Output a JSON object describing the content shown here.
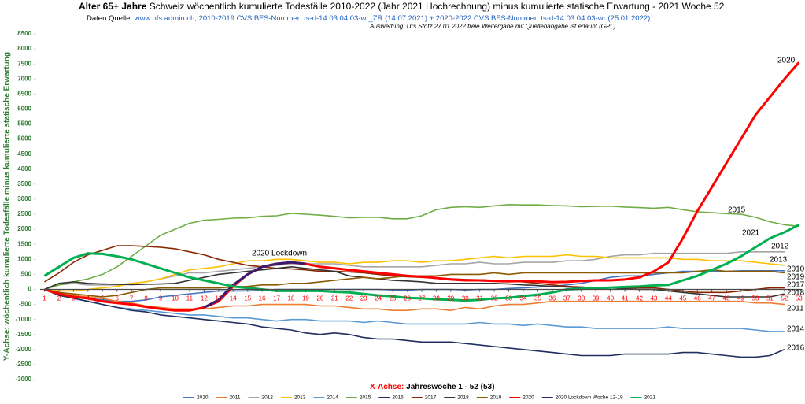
{
  "chart_data": {
    "type": "line",
    "title_bold": "Alter 65+ Jahre",
    "title": "Schweiz wöchentlich kumulierte Todesfälle 2010-2022 (Jahr 2021 Hochrechnung) minus kumulierte statische Erwartung -  2021  Woche  52",
    "source_label": "Daten Quelle:",
    "source": "www.bfs.admin.ch,  2010-2019 CVS BFS-Nummer: ts-d-14.03.04.03-wr_ZR (14.07.2021) + 2020-2022 CVS BFS-Nummer: ts-d-14.03.04.03-wr (25.01.2022)",
    "credit": "Auswertung: Urs Stotz 27.01.2022 freie Weitergabe mit Quellenangabe ist erlaubt (GPL)",
    "ylabel": "Y-Achse: wöchentlich kumulierte Todesfälle minus kumulierte statische Erwartung",
    "xlabel_bold": "X-Achse:",
    "xlabel": "Jahreswoche  1 - 52 (53)",
    "annotation": "2020 Lockdown",
    "xlim": [
      0.7,
      53.2
    ],
    "ylim": [
      -3000,
      8500
    ],
    "yticks": [
      -3000,
      -2500,
      -2000,
      -1500,
      -1000,
      -500,
      0,
      500,
      1000,
      1500,
      2000,
      2500,
      3000,
      3500,
      4000,
      4500,
      5000,
      5500,
      6000,
      6500,
      7000,
      7500,
      8000,
      8500
    ],
    "x": [
      1,
      2,
      3,
      4,
      5,
      6,
      7,
      8,
      9,
      10,
      11,
      12,
      13,
      14,
      15,
      16,
      17,
      18,
      19,
      20,
      21,
      22,
      23,
      24,
      25,
      26,
      27,
      28,
      29,
      30,
      31,
      32,
      33,
      34,
      35,
      36,
      37,
      38,
      39,
      40,
      41,
      42,
      43,
      44,
      45,
      46,
      47,
      48,
      49,
      50,
      51,
      52,
      53
    ],
    "series": [
      {
        "name": "2010",
        "color": "#4472c4",
        "values": [
          0,
          -150,
          -250,
          -300,
          -350,
          -400,
          -400,
          -350,
          -250,
          -200,
          -150,
          -100,
          -50,
          -50,
          -50,
          -30,
          0,
          0,
          0,
          0,
          0,
          0,
          0,
          0,
          -20,
          -30,
          0,
          0,
          0,
          -20,
          0,
          0,
          30,
          50,
          80,
          100,
          150,
          200,
          300,
          400,
          450,
          450,
          500,
          550,
          600,
          600,
          600,
          600,
          620,
          620,
          620,
          620,
          null
        ]
      },
      {
        "name": "2011",
        "color": "#ed7d31",
        "values": [
          0,
          -100,
          -200,
          -250,
          -300,
          -400,
          -450,
          -550,
          -600,
          -650,
          -650,
          -650,
          -600,
          -550,
          -550,
          -500,
          -500,
          -500,
          -500,
          -550,
          -550,
          -600,
          -650,
          -650,
          -700,
          -700,
          -650,
          -650,
          -700,
          -600,
          -650,
          -550,
          -500,
          -500,
          -450,
          -400,
          -400,
          -400,
          -400,
          -400,
          -400,
          -400,
          -400,
          -400,
          -400,
          -400,
          -400,
          -400,
          -400,
          -450,
          -450,
          -500,
          null
        ]
      },
      {
        "name": "2012",
        "color": "#a5a5a5",
        "values": [
          0,
          150,
          200,
          150,
          150,
          150,
          200,
          250,
          350,
          450,
          550,
          550,
          600,
          650,
          700,
          750,
          800,
          850,
          850,
          850,
          850,
          800,
          750,
          750,
          750,
          750,
          750,
          800,
          850,
          850,
          900,
          850,
          850,
          900,
          900,
          900,
          950,
          950,
          1000,
          1100,
          1150,
          1150,
          1200,
          1200,
          1200,
          1200,
          1200,
          1200,
          1250,
          1250,
          1250,
          1250,
          null
        ]
      },
      {
        "name": "2013",
        "color": "#ffc000",
        "values": [
          0,
          -50,
          -50,
          0,
          50,
          100,
          200,
          250,
          350,
          500,
          650,
          700,
          750,
          850,
          950,
          950,
          1000,
          1000,
          950,
          900,
          900,
          850,
          900,
          900,
          950,
          950,
          900,
          950,
          950,
          1000,
          1050,
          1100,
          1050,
          1100,
          1100,
          1100,
          1150,
          1100,
          1100,
          1050,
          1050,
          1050,
          1050,
          1050,
          1000,
          1000,
          950,
          950,
          950,
          900,
          850,
          800,
          null
        ]
      },
      {
        "name": "2014",
        "color": "#5b9bd5",
        "values": [
          0,
          -150,
          -300,
          -400,
          -500,
          -600,
          -650,
          -700,
          -750,
          -800,
          -850,
          -850,
          -900,
          -950,
          -950,
          -1000,
          -1050,
          -1000,
          -1000,
          -1050,
          -1050,
          -1050,
          -1100,
          -1050,
          -1100,
          -1150,
          -1150,
          -1150,
          -1150,
          -1150,
          -1100,
          -1150,
          -1150,
          -1200,
          -1150,
          -1200,
          -1250,
          -1250,
          -1300,
          -1300,
          -1300,
          -1300,
          -1300,
          -1250,
          -1300,
          -1300,
          -1300,
          -1300,
          -1300,
          -1350,
          -1400,
          -1400,
          null
        ]
      },
      {
        "name": "2015",
        "color": "#70ad47",
        "values": [
          0,
          150,
          250,
          350,
          500,
          750,
          1100,
          1450,
          1800,
          2000,
          2200,
          2300,
          2330,
          2370,
          2380,
          2430,
          2450,
          2530,
          2500,
          2470,
          2430,
          2380,
          2400,
          2400,
          2350,
          2350,
          2450,
          2650,
          2730,
          2750,
          2730,
          2780,
          2820,
          2810,
          2810,
          2790,
          2780,
          2750,
          2760,
          2770,
          2740,
          2720,
          2700,
          2730,
          2650,
          2580,
          2550,
          2520,
          2500,
          2400,
          2250,
          2150,
          2100
        ]
      },
      {
        "name": "2016",
        "color": "#1f2f5f",
        "values": [
          0,
          -200,
          -300,
          -400,
          -500,
          -600,
          -700,
          -750,
          -850,
          -900,
          -950,
          -1000,
          -1050,
          -1100,
          -1150,
          -1250,
          -1300,
          -1350,
          -1450,
          -1500,
          -1450,
          -1500,
          -1600,
          -1650,
          -1650,
          -1700,
          -1750,
          -1750,
          -1750,
          -1800,
          -1850,
          -1900,
          -1950,
          -2000,
          -2050,
          -2100,
          -2150,
          -2200,
          -2200,
          -2200,
          -2150,
          -2150,
          -2150,
          -2150,
          -2100,
          -2100,
          -2150,
          -2200,
          -2250,
          -2250,
          -2200,
          -2000,
          null
        ]
      },
      {
        "name": "2017",
        "color": "#8b2500",
        "values": [
          250,
          550,
          900,
          1150,
          1300,
          1450,
          1450,
          1430,
          1400,
          1350,
          1250,
          1150,
          1000,
          900,
          800,
          750,
          700,
          680,
          650,
          600,
          600,
          580,
          550,
          500,
          450,
          420,
          400,
          380,
          350,
          330,
          320,
          300,
          280,
          250,
          200,
          150,
          100,
          80,
          50,
          50,
          50,
          50,
          50,
          0,
          -50,
          -100,
          -100,
          -100,
          -50,
          0,
          50,
          50,
          null
        ]
      },
      {
        "name": "2018",
        "color": "#333333",
        "values": [
          0,
          200,
          250,
          200,
          180,
          170,
          160,
          170,
          180,
          200,
          300,
          400,
          500,
          550,
          600,
          650,
          700,
          750,
          700,
          650,
          600,
          450,
          400,
          350,
          300,
          280,
          250,
          200,
          200,
          200,
          200,
          200,
          180,
          150,
          130,
          100,
          80,
          60,
          50,
          50,
          20,
          0,
          0,
          -50,
          -100,
          -150,
          -200,
          -250,
          -250,
          -250,
          -250,
          -150,
          null
        ]
      },
      {
        "name": "2019",
        "color": "#8b5a00",
        "values": [
          0,
          -100,
          -150,
          -200,
          -250,
          -200,
          -100,
          0,
          50,
          50,
          50,
          50,
          50,
          80,
          100,
          150,
          150,
          200,
          200,
          250,
          300,
          350,
          400,
          350,
          400,
          450,
          450,
          450,
          500,
          500,
          500,
          550,
          500,
          550,
          550,
          550,
          550,
          550,
          550,
          550,
          550,
          550,
          550,
          550,
          550,
          600,
          650,
          600,
          600,
          600,
          600,
          550,
          null
        ]
      },
      {
        "name": "2020",
        "color": "#ff0000",
        "values": [
          0,
          -150,
          -250,
          -300,
          -400,
          -450,
          -500,
          -580,
          -650,
          -700,
          -700,
          -600,
          -400,
          100,
          500,
          750,
          850,
          900,
          850,
          750,
          700,
          650,
          600,
          550,
          500,
          450,
          420,
          380,
          330,
          300,
          300,
          280,
          270,
          280,
          270,
          240,
          250,
          280,
          300,
          300,
          330,
          400,
          600,
          900,
          1700,
          2600,
          3400,
          4200,
          5000,
          5800,
          6400,
          7000,
          7550
        ]
      },
      {
        "name": "2020 Lockdown Woche 12-19",
        "color": "#3c1a6e",
        "values": [
          null,
          null,
          null,
          null,
          null,
          null,
          null,
          null,
          null,
          null,
          null,
          -600,
          -350,
          150,
          500,
          750,
          850,
          900,
          850,
          null,
          null,
          null,
          null,
          null,
          null,
          null,
          null,
          null,
          null,
          null,
          null,
          null,
          null,
          null,
          null,
          null,
          null,
          null,
          null,
          null,
          null,
          null,
          null,
          null,
          null,
          null,
          null,
          null,
          null,
          null,
          null,
          null,
          null
        ]
      },
      {
        "name": "2021",
        "color": "#00b050",
        "values": [
          450,
          750,
          1050,
          1200,
          1180,
          1100,
          1000,
          850,
          700,
          550,
          400,
          300,
          200,
          100,
          50,
          0,
          -50,
          -50,
          -50,
          -50,
          -80,
          -100,
          -150,
          -200,
          -230,
          -280,
          -300,
          -330,
          -350,
          -370,
          -350,
          -300,
          -280,
          -220,
          -180,
          -100,
          0,
          20,
          40,
          60,
          80,
          100,
          130,
          150,
          300,
          450,
          650,
          850,
          1100,
          1400,
          1700,
          1900,
          2150
        ]
      }
    ]
  }
}
